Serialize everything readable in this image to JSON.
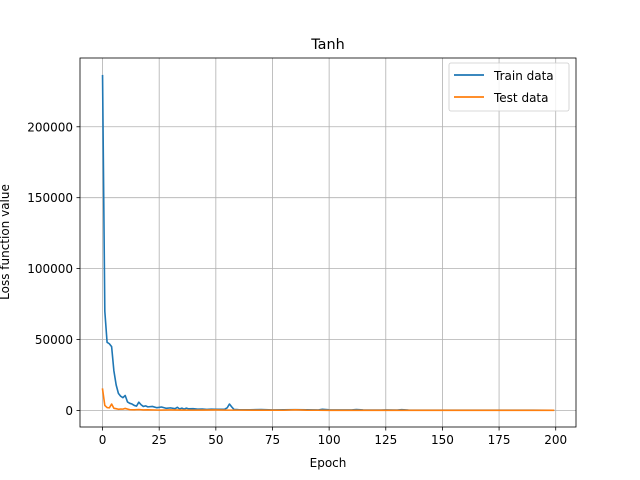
{
  "chart_data": {
    "type": "line",
    "title": "Tanh",
    "xlabel": "Epoch",
    "ylabel": "Loss function value",
    "xlim": [
      -9.95,
      208.95
    ],
    "ylim": [
      -11700,
      248500
    ],
    "xticks": [
      0,
      25,
      50,
      75,
      100,
      125,
      150,
      175,
      200
    ],
    "yticks": [
      0,
      50000,
      100000,
      150000,
      200000
    ],
    "xtick_labels": [
      "0",
      "25",
      "50",
      "75",
      "100",
      "125",
      "150",
      "175",
      "200"
    ],
    "ytick_labels": [
      "0",
      "50000",
      "100000",
      "150000",
      "200000"
    ],
    "grid": true,
    "legend_position": "top-right",
    "series": [
      {
        "name": "Train data",
        "color": "#1f77b4",
        "x": [
          0,
          1,
          2,
          3,
          4,
          5,
          6,
          7,
          8,
          9,
          10,
          11,
          12,
          13,
          14,
          15,
          16,
          17,
          18,
          19,
          20,
          22,
          24,
          26,
          28,
          30,
          32,
          33,
          34,
          35,
          36,
          37,
          38,
          40,
          42,
          44,
          46,
          48,
          50,
          52,
          54,
          55,
          56,
          57,
          58,
          60,
          65,
          70,
          75,
          80,
          85,
          90,
          95,
          97,
          100,
          105,
          110,
          112,
          115,
          120,
          125,
          130,
          132,
          135,
          140,
          150,
          160,
          170,
          180,
          190,
          199
        ],
        "y": [
          236000,
          70000,
          48000,
          47000,
          45000,
          28000,
          18000,
          12000,
          10000,
          9000,
          10500,
          6000,
          5000,
          4500,
          3500,
          3000,
          5800,
          4000,
          2800,
          3200,
          2500,
          2800,
          1900,
          2400,
          1500,
          1800,
          1200,
          2200,
          1000,
          1600,
          900,
          1600,
          1100,
          1200,
          900,
          1000,
          700,
          900,
          800,
          800,
          900,
          1800,
          4500,
          2500,
          700,
          500,
          400,
          600,
          350,
          400,
          500,
          450,
          300,
          800,
          400,
          350,
          300,
          600,
          300,
          250,
          300,
          250,
          500,
          250,
          200,
          200,
          150,
          180,
          150,
          130,
          120
        ]
      },
      {
        "name": "Test data",
        "color": "#ff7f0e",
        "x": [
          0,
          1,
          2,
          3,
          4,
          5,
          6,
          7,
          8,
          9,
          10,
          12,
          14,
          16,
          18,
          20,
          25,
          30,
          35,
          40,
          45,
          50,
          55,
          60,
          70,
          80,
          85,
          90,
          95,
          100,
          110,
          120,
          130,
          140,
          150,
          160,
          170,
          180,
          190,
          199
        ],
        "y": [
          15000,
          3500,
          2000,
          1800,
          4500,
          1500,
          1200,
          800,
          1000,
          900,
          1400,
          500,
          400,
          600,
          300,
          400,
          200,
          300,
          250,
          200,
          250,
          300,
          200,
          200,
          150,
          120,
          400,
          150,
          120,
          100,
          100,
          100,
          100,
          80,
          80,
          70,
          70,
          60,
          60,
          50
        ]
      }
    ]
  }
}
